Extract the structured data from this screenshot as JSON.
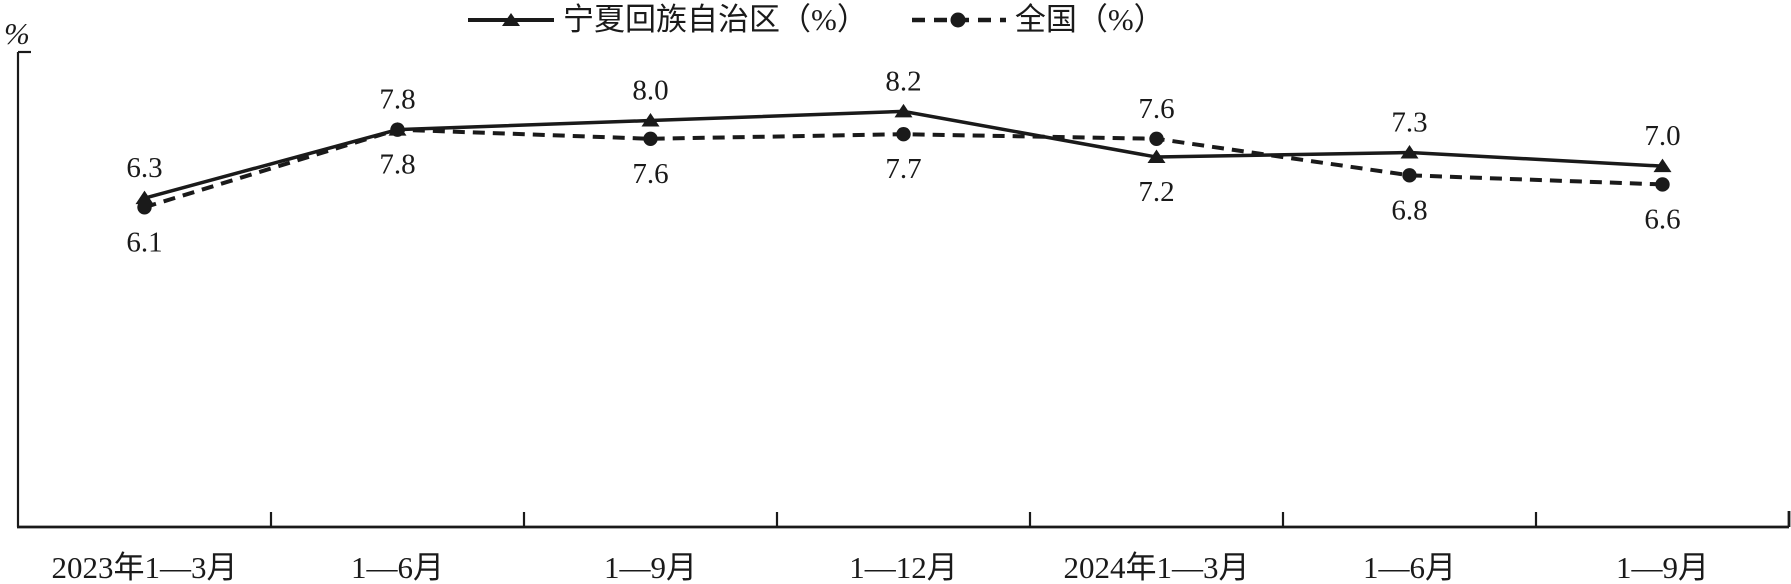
{
  "page": {
    "background_color": "#ffffff"
  },
  "chart_data": {
    "type": "line",
    "title": "",
    "xlabel": "",
    "ylabel": "%",
    "ink_color": "#1a1a1a",
    "grid": false,
    "legend_position": "top-center",
    "value_labels_shown": true,
    "ylim": [
      -0.9,
      9.5
    ],
    "categories": [
      "2023年1—3月",
      "1—6月",
      "1—9月",
      "1—12月",
      "2024年1—3月",
      "1—6月",
      "1—9月"
    ],
    "series": [
      {
        "name": "宁夏回族自治区（%）",
        "values": [
          6.3,
          7.8,
          8.0,
          8.2,
          7.2,
          7.3,
          7.0
        ],
        "line_style": "solid",
        "marker": "triangle",
        "color": "#1a1a1a",
        "label_positions": [
          "above",
          "above",
          "above",
          "above",
          "below",
          "above",
          "above"
        ]
      },
      {
        "name": "全国（%）",
        "values": [
          6.1,
          7.8,
          7.6,
          7.7,
          7.6,
          6.8,
          6.6
        ],
        "line_style": "dashed",
        "marker": "circle",
        "color": "#1a1a1a",
        "label_positions": [
          "below",
          "below",
          "below",
          "below",
          "above",
          "below",
          "below"
        ]
      }
    ]
  }
}
